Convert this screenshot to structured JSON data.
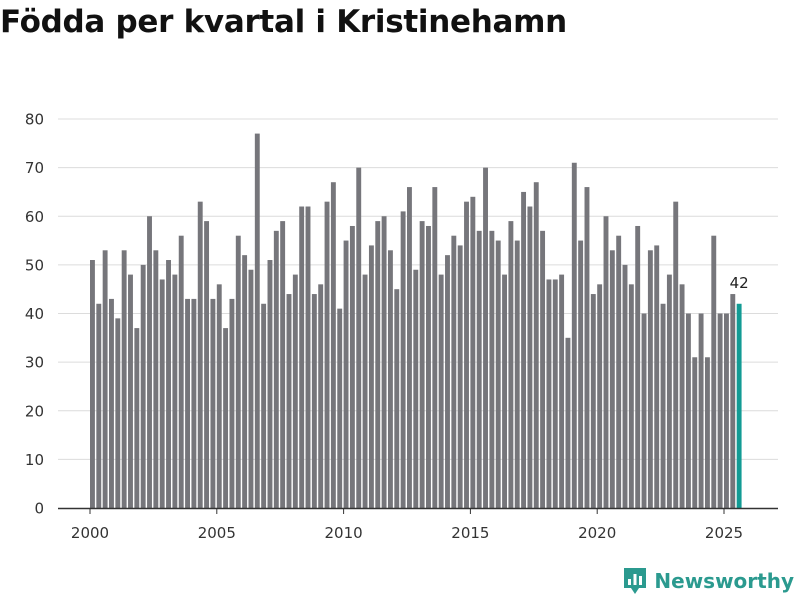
{
  "title": "Födda per kvartal i Kristinehamn",
  "brand": {
    "name": "Newsworthy",
    "color": "#2b9a8f"
  },
  "colors": {
    "bar": "#76767b",
    "highlight": "#129b94",
    "grid": "#dcdcdc",
    "axis": "#333333",
    "text": "#333333"
  },
  "chart_data": {
    "type": "bar",
    "title": "Födda per kvartal i Kristinehamn",
    "xlabel": "",
    "ylabel": "",
    "ylim": [
      0,
      80
    ],
    "yticks": [
      0,
      10,
      20,
      30,
      40,
      50,
      60,
      70,
      80
    ],
    "xticks": [
      2000,
      2005,
      2010,
      2015,
      2020,
      2025
    ],
    "start_year": 2000,
    "periods_per_year": 4,
    "values": [
      51,
      42,
      53,
      43,
      39,
      53,
      48,
      37,
      50,
      60,
      53,
      47,
      51,
      48,
      56,
      43,
      43,
      63,
      59,
      43,
      46,
      37,
      43,
      56,
      52,
      49,
      77,
      42,
      51,
      57,
      59,
      44,
      48,
      62,
      62,
      44,
      46,
      63,
      67,
      41,
      55,
      58,
      70,
      48,
      54,
      59,
      60,
      53,
      45,
      61,
      66,
      49,
      59,
      58,
      66,
      48,
      52,
      56,
      54,
      63,
      64,
      57,
      70,
      57,
      55,
      48,
      59,
      55,
      65,
      62,
      67,
      57,
      47,
      47,
      48,
      35,
      71,
      55,
      66,
      44,
      46,
      60,
      53,
      56,
      50,
      46,
      58,
      40,
      53,
      54,
      42,
      48,
      63,
      46,
      40,
      31,
      40,
      31,
      56,
      40,
      40,
      44,
      42
    ],
    "highlight_index": 102,
    "last_value_label": "42"
  }
}
